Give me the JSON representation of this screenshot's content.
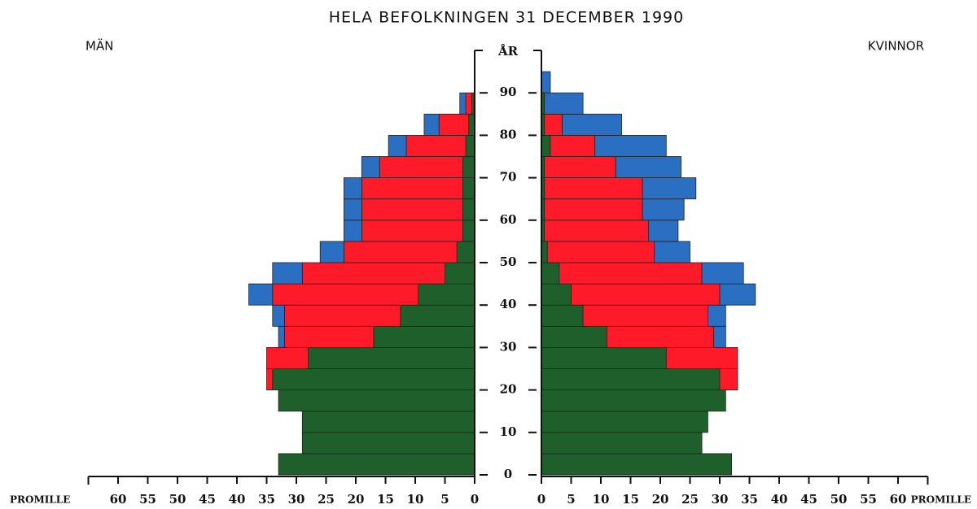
{
  "chart_data": {
    "type": "pyramid",
    "title": "HELA BEFOLKNINGEN 31 DECEMBER 1990",
    "left_label": "MÄN",
    "right_label": "KVINNOR",
    "y_label": "ÅR",
    "x_label": "PROMILLE",
    "bins": [
      0,
      5,
      10,
      15,
      20,
      25,
      30,
      35,
      40,
      45,
      50,
      55,
      60,
      65,
      70,
      75,
      80,
      85,
      90,
      95
    ],
    "ylim": [
      0,
      100
    ],
    "yticks": [
      0,
      10,
      20,
      30,
      40,
      50,
      60,
      70,
      80,
      90
    ],
    "xlim": [
      0,
      65
    ],
    "xticks": [
      0,
      5,
      10,
      15,
      20,
      25,
      30,
      35,
      40,
      45,
      50,
      55,
      60
    ],
    "men": [
      {
        "color": "#1f5f2b",
        "values": [
          33,
          29,
          29,
          33,
          34,
          28,
          17,
          12.5,
          9.5,
          5,
          3,
          2,
          2,
          2,
          2,
          1.5,
          1,
          0.5,
          0
        ]
      },
      {
        "color": "#ff1a2a",
        "values": [
          0,
          0,
          0,
          0,
          1,
          7,
          15,
          19.5,
          24.5,
          24,
          19,
          17,
          17,
          17,
          14,
          10,
          5,
          1,
          0
        ]
      },
      {
        "color": "#2b6fc2",
        "values": [
          0,
          0,
          0,
          0,
          0,
          0,
          1,
          2,
          4,
          5,
          4,
          3,
          3,
          3,
          3,
          3,
          2.5,
          1,
          0
        ]
      }
    ],
    "women": [
      {
        "color": "#1f5f2b",
        "values": [
          32,
          27,
          28,
          31,
          30,
          21,
          11,
          7,
          5,
          3,
          1,
          0.5,
          0.5,
          0.5,
          0.5,
          1.5,
          0.5,
          0.5,
          0
        ]
      },
      {
        "color": "#ff1a2a",
        "values": [
          0,
          0,
          0,
          0,
          3,
          12,
          18,
          21,
          25,
          24,
          18,
          17.5,
          16.5,
          16.5,
          12,
          7.5,
          3,
          0,
          0
        ]
      },
      {
        "color": "#2b6fc2",
        "values": [
          0,
          0,
          0,
          0,
          0,
          0,
          2,
          3,
          6,
          7,
          6,
          5,
          7,
          9,
          11,
          12,
          10,
          6.5,
          1.5
        ]
      }
    ]
  }
}
